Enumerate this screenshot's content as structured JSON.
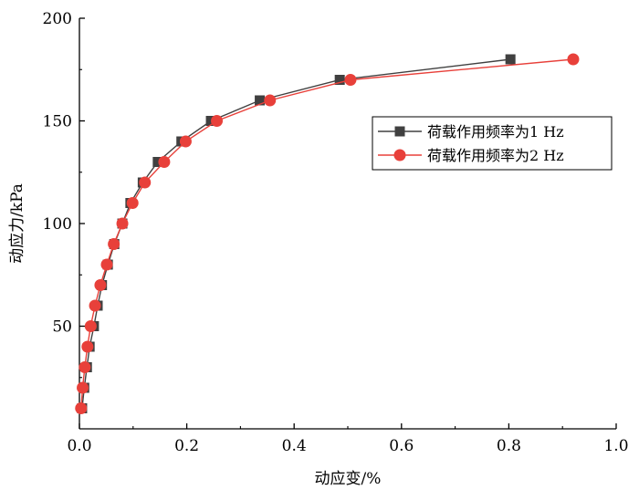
{
  "chart_data": {
    "type": "line",
    "xlabel": "动应变/%",
    "ylabel": "动应力/kPa",
    "xlim": [
      0.0,
      1.0
    ],
    "ylim": [
      0,
      200
    ],
    "x_ticks": [
      "0.0",
      "0.2",
      "0.4",
      "0.6",
      "0.8",
      "1.0"
    ],
    "y_ticks": [
      "50",
      "100",
      "150",
      "200"
    ],
    "grid": false,
    "legend_position": "right",
    "series": [
      {
        "name": "荷载作用频率为1 Hz",
        "color": "#404040",
        "marker": "square",
        "points": [
          {
            "x": 0.005,
            "y": 10
          },
          {
            "x": 0.009,
            "y": 20
          },
          {
            "x": 0.014,
            "y": 30
          },
          {
            "x": 0.019,
            "y": 40
          },
          {
            "x": 0.027,
            "y": 50
          },
          {
            "x": 0.034,
            "y": 60
          },
          {
            "x": 0.042,
            "y": 70
          },
          {
            "x": 0.053,
            "y": 80
          },
          {
            "x": 0.065,
            "y": 90
          },
          {
            "x": 0.08,
            "y": 100
          },
          {
            "x": 0.095,
            "y": 110
          },
          {
            "x": 0.118,
            "y": 120
          },
          {
            "x": 0.146,
            "y": 130
          },
          {
            "x": 0.19,
            "y": 140
          },
          {
            "x": 0.245,
            "y": 150
          },
          {
            "x": 0.336,
            "y": 160
          },
          {
            "x": 0.485,
            "y": 170
          },
          {
            "x": 0.803,
            "y": 180
          }
        ]
      },
      {
        "name": "荷载作用频率为2 Hz",
        "color": "#e8403a",
        "marker": "circle",
        "points": [
          {
            "x": 0.003,
            "y": 10
          },
          {
            "x": 0.006,
            "y": 20
          },
          {
            "x": 0.01,
            "y": 30
          },
          {
            "x": 0.015,
            "y": 40
          },
          {
            "x": 0.021,
            "y": 50
          },
          {
            "x": 0.029,
            "y": 60
          },
          {
            "x": 0.039,
            "y": 70
          },
          {
            "x": 0.051,
            "y": 80
          },
          {
            "x": 0.064,
            "y": 90
          },
          {
            "x": 0.08,
            "y": 100
          },
          {
            "x": 0.099,
            "y": 110
          },
          {
            "x": 0.122,
            "y": 120
          },
          {
            "x": 0.158,
            "y": 130
          },
          {
            "x": 0.198,
            "y": 140
          },
          {
            "x": 0.256,
            "y": 150
          },
          {
            "x": 0.355,
            "y": 160
          },
          {
            "x": 0.505,
            "y": 170
          },
          {
            "x": 0.92,
            "y": 180
          }
        ]
      }
    ]
  }
}
